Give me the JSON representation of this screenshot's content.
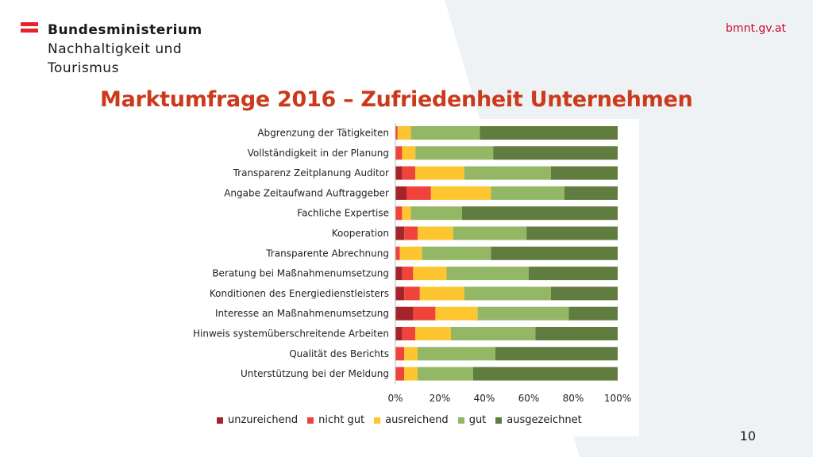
{
  "header": {
    "ministry_line1": "Bundesministerium",
    "ministry_line2": "Nachhaltigkeit und",
    "ministry_line3": "Tourismus",
    "website": "bmnt.gv.at"
  },
  "slide": {
    "title": "Marktumfrage 2016 – Zufriedenheit Unternehmen",
    "page_number": "10"
  },
  "colors": {
    "brand_red": "#e3242b",
    "title": "#cc3a1c",
    "series": [
      "#a5232b",
      "#f0433b",
      "#fdc530",
      "#94b765",
      "#607c3f"
    ]
  },
  "chart_data": {
    "type": "bar",
    "orientation": "horizontal",
    "stacked": true,
    "categories": [
      "Abgrenzung der Tätigkeiten",
      "Vollständigkeit in der Planung",
      "Transparenz Zeitplanung Auditor",
      "Angabe Zeitaufwand Auftraggeber",
      "Fachliche Expertise",
      "Kooperation",
      "Transparente Abrechnung",
      "Beratung bei Maßnahmenumsetzung",
      "Konditionen des Energiedienstleisters",
      "Interesse an Maßnahmenumsetzung",
      "Hinweis systemüberschreitende Arbeiten",
      "Qualität des Berichts",
      "Unterstützung bei der Meldung"
    ],
    "series": [
      {
        "name": "unzureichend",
        "values": [
          0,
          0,
          3,
          5,
          0,
          4,
          0,
          3,
          4,
          8,
          3,
          0,
          0
        ]
      },
      {
        "name": "nicht gut",
        "values": [
          1,
          3,
          6,
          11,
          3,
          6,
          2,
          5,
          7,
          10,
          6,
          4,
          4
        ]
      },
      {
        "name": "ausreichend",
        "values": [
          6,
          6,
          22,
          27,
          4,
          16,
          10,
          15,
          20,
          19,
          16,
          6,
          6
        ]
      },
      {
        "name": "gut",
        "values": [
          31,
          35,
          39,
          33,
          23,
          33,
          31,
          37,
          39,
          41,
          38,
          35,
          25
        ]
      },
      {
        "name": "ausgezeichnet",
        "values": [
          62,
          56,
          30,
          24,
          70,
          41,
          57,
          40,
          30,
          22,
          37,
          55,
          65
        ]
      }
    ],
    "x_ticks": [
      "0%",
      "20%",
      "40%",
      "60%",
      "80%",
      "100%"
    ],
    "xlim": [
      0,
      100
    ],
    "legend_position": "bottom",
    "grid": false
  }
}
